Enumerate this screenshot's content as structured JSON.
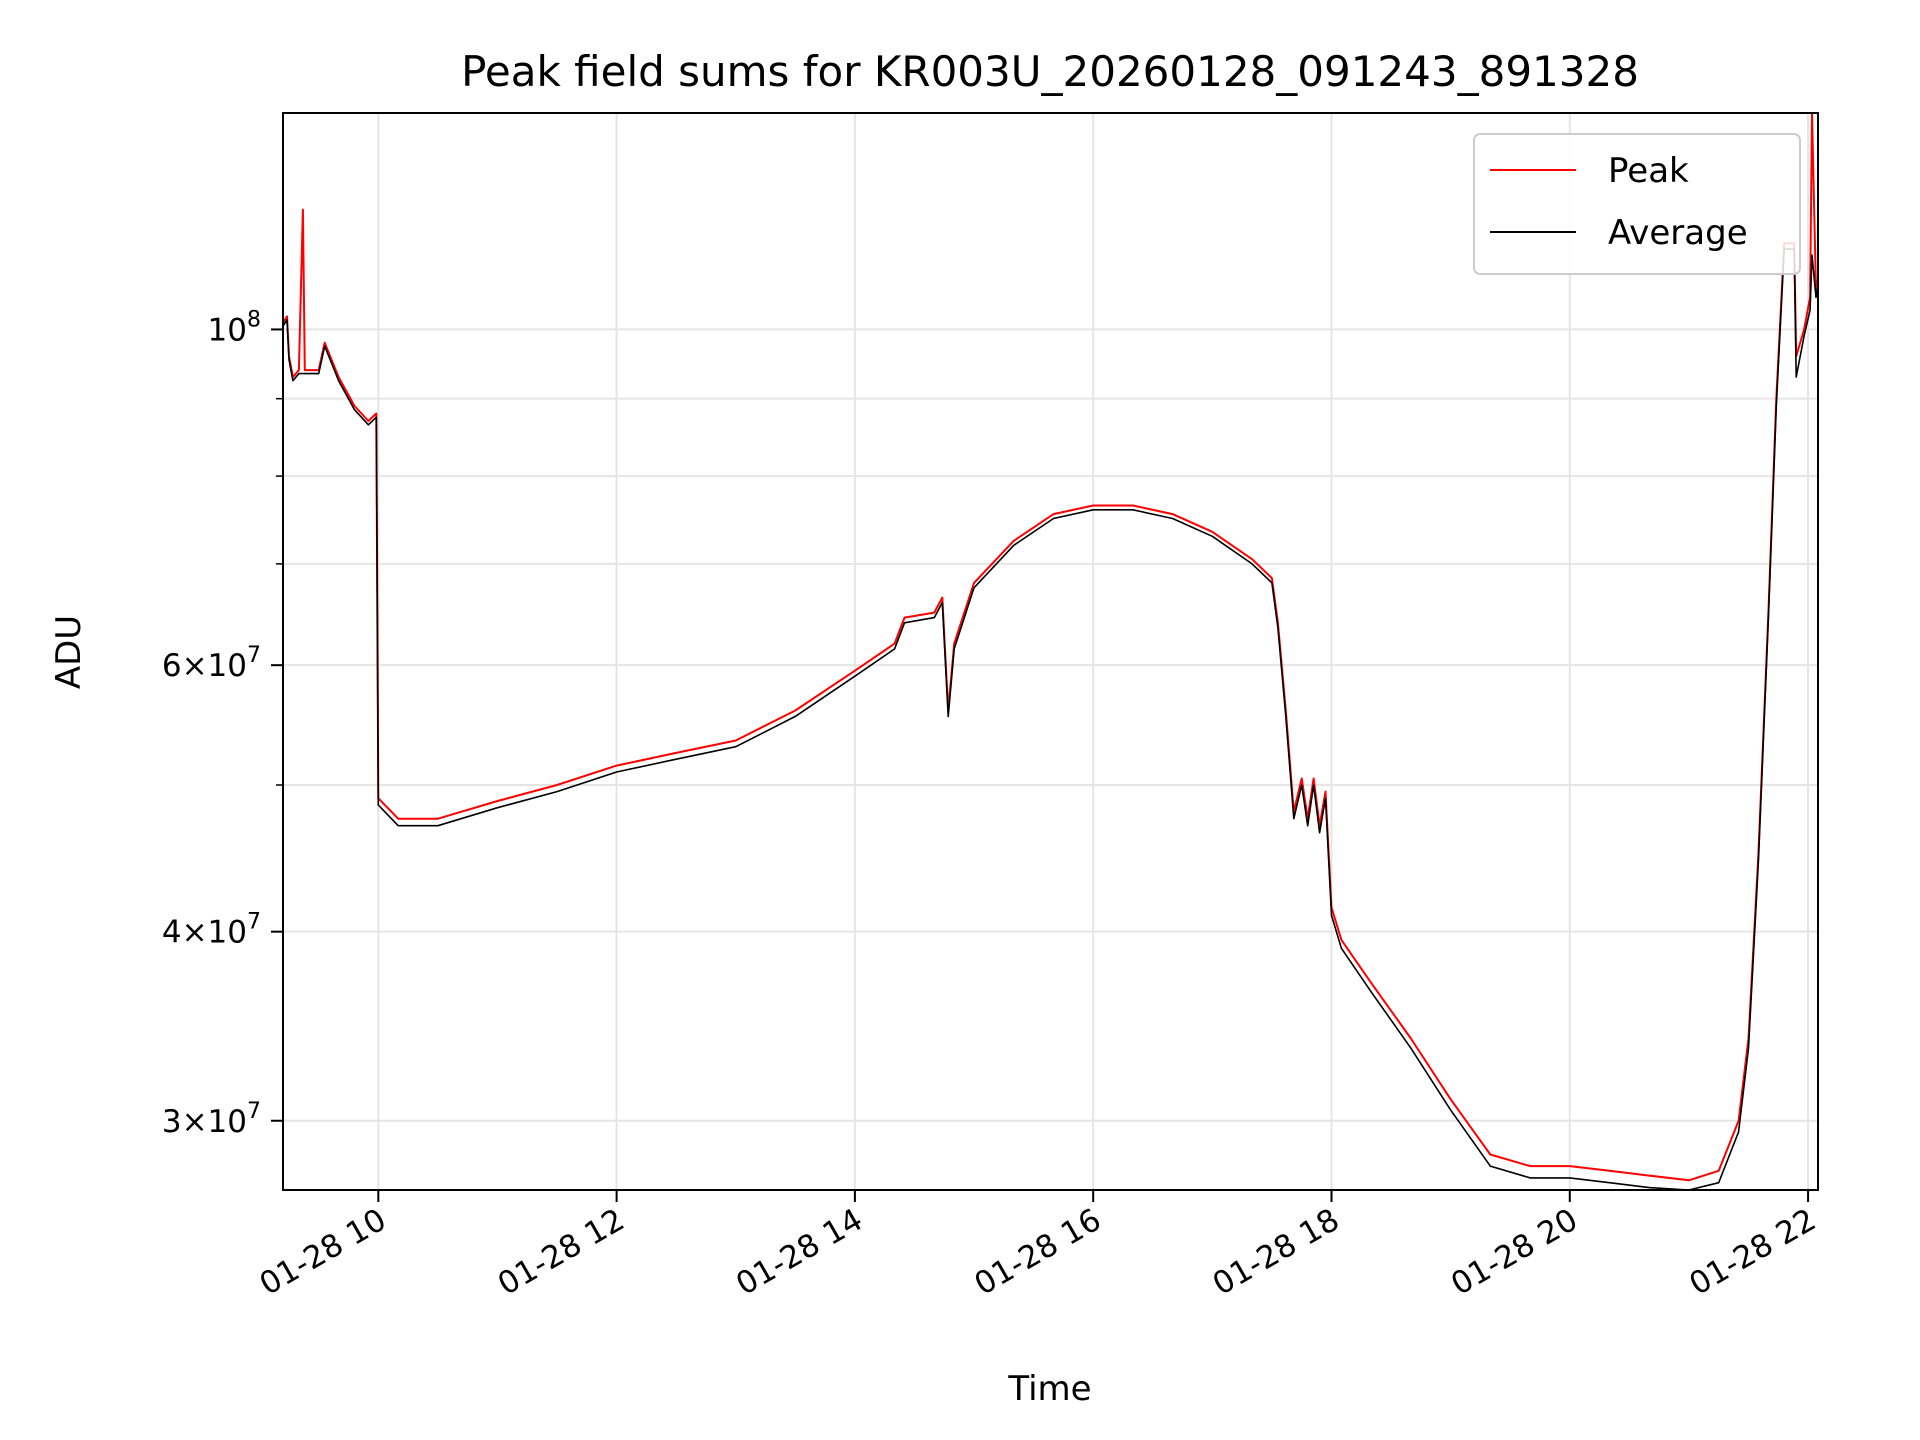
{
  "chart_data": {
    "type": "line",
    "title": "Peak field sums for KR003U_20260128_091243_891328",
    "xlabel": "Time",
    "ylabel": "ADU",
    "y_scale": "log",
    "xlim": [
      "2026-01-28 09:12",
      "2026-01-28 22:05"
    ],
    "ylim": [
      27000000,
      139000000
    ],
    "grid": true,
    "legend_position": "top-right",
    "x_ticks": [
      {
        "value": "2026-01-28 10:00",
        "label": "01-28 10"
      },
      {
        "value": "2026-01-28 12:00",
        "label": "01-28 12"
      },
      {
        "value": "2026-01-28 14:00",
        "label": "01-28 14"
      },
      {
        "value": "2026-01-28 16:00",
        "label": "01-28 16"
      },
      {
        "value": "2026-01-28 18:00",
        "label": "01-28 18"
      },
      {
        "value": "2026-01-28 20:00",
        "label": "01-28 20"
      },
      {
        "value": "2026-01-28 22:00",
        "label": "01-28 22"
      }
    ],
    "y_ticks": [
      {
        "value": 30000000,
        "mantissa": "3",
        "times": "×",
        "base": "10",
        "exp": "7"
      },
      {
        "value": 40000000,
        "mantissa": "4",
        "times": "×",
        "base": "10",
        "exp": "7"
      },
      {
        "value": 60000000,
        "mantissa": "6",
        "times": "×",
        "base": "10",
        "exp": "7"
      },
      {
        "value": 100000000,
        "mantissa": "",
        "times": "",
        "base": "10",
        "exp": "8"
      }
    ],
    "y_minor_ticks": [
      50000000,
      70000000,
      80000000,
      90000000
    ],
    "series": [
      {
        "name": "Peak",
        "color": "#ff0000",
        "points": [
          [
            "2026-01-28 09:12",
            101000000
          ],
          [
            "2026-01-28 09:14",
            102000000
          ],
          [
            "2026-01-28 09:15",
            96000000
          ],
          [
            "2026-01-28 09:17",
            93000000
          ],
          [
            "2026-01-28 09:20",
            94000000
          ],
          [
            "2026-01-28 09:22",
            120000000
          ],
          [
            "2026-01-28 09:23",
            94000000
          ],
          [
            "2026-01-28 09:30",
            94000000
          ],
          [
            "2026-01-28 09:33",
            98000000
          ],
          [
            "2026-01-28 09:40",
            93000000
          ],
          [
            "2026-01-28 09:48",
            89000000
          ],
          [
            "2026-01-28 09:55",
            87000000
          ],
          [
            "2026-01-28 09:59",
            88000000
          ],
          [
            "2026-01-28 10:00",
            49000000
          ],
          [
            "2026-01-28 10:10",
            47500000
          ],
          [
            "2026-01-28 10:30",
            47500000
          ],
          [
            "2026-01-28 11:00",
            48800000
          ],
          [
            "2026-01-28 11:30",
            50000000
          ],
          [
            "2026-01-28 12:00",
            51500000
          ],
          [
            "2026-01-28 12:30",
            52500000
          ],
          [
            "2026-01-28 13:00",
            53500000
          ],
          [
            "2026-01-28 13:30",
            56000000
          ],
          [
            "2026-01-28 14:00",
            59500000
          ],
          [
            "2026-01-28 14:20",
            62000000
          ],
          [
            "2026-01-28 14:25",
            64500000
          ],
          [
            "2026-01-28 14:40",
            65000000
          ],
          [
            "2026-01-28 14:44",
            66500000
          ],
          [
            "2026-01-28 14:47",
            56000000
          ],
          [
            "2026-01-28 14:50",
            62000000
          ],
          [
            "2026-01-28 15:00",
            68000000
          ],
          [
            "2026-01-28 15:20",
            72500000
          ],
          [
            "2026-01-28 15:40",
            75500000
          ],
          [
            "2026-01-28 16:00",
            76500000
          ],
          [
            "2026-01-28 16:20",
            76500000
          ],
          [
            "2026-01-28 16:40",
            75500000
          ],
          [
            "2026-01-28 17:00",
            73500000
          ],
          [
            "2026-01-28 17:20",
            70500000
          ],
          [
            "2026-01-28 17:30",
            68500000
          ],
          [
            "2026-01-28 17:33",
            64000000
          ],
          [
            "2026-01-28 17:37",
            56000000
          ],
          [
            "2026-01-28 17:41",
            48000000
          ],
          [
            "2026-01-28 17:45",
            50500000
          ],
          [
            "2026-01-28 17:48",
            47500000
          ],
          [
            "2026-01-28 17:51",
            50500000
          ],
          [
            "2026-01-28 17:54",
            47000000
          ],
          [
            "2026-01-28 17:57",
            49500000
          ],
          [
            "2026-01-28 18:00",
            41500000
          ],
          [
            "2026-01-28 18:05",
            39500000
          ],
          [
            "2026-01-28 18:20",
            37000000
          ],
          [
            "2026-01-28 18:40",
            34000000
          ],
          [
            "2026-01-28 19:00",
            31000000
          ],
          [
            "2026-01-28 19:20",
            28500000
          ],
          [
            "2026-01-28 19:40",
            28000000
          ],
          [
            "2026-01-28 20:00",
            28000000
          ],
          [
            "2026-01-28 20:20",
            27800000
          ],
          [
            "2026-01-28 20:40",
            27600000
          ],
          [
            "2026-01-28 21:00",
            27400000
          ],
          [
            "2026-01-28 21:15",
            27800000
          ],
          [
            "2026-01-28 21:25",
            30000000
          ],
          [
            "2026-01-28 21:30",
            34000000
          ],
          [
            "2026-01-28 21:35",
            45000000
          ],
          [
            "2026-01-28 21:40",
            65000000
          ],
          [
            "2026-01-28 21:44",
            90000000
          ],
          [
            "2026-01-28 21:48",
            114000000
          ],
          [
            "2026-01-28 21:53",
            114000000
          ],
          [
            "2026-01-28 21:54",
            96000000
          ],
          [
            "2026-01-28 21:58",
            100000000
          ],
          [
            "2026-01-28 22:01",
            105000000
          ],
          [
            "2026-01-28 22:02",
            139000000
          ],
          [
            "2026-01-28 22:04",
            106000000
          ],
          [
            "2026-01-28 22:05",
            108000000
          ]
        ]
      },
      {
        "name": "Average",
        "color": "#000000",
        "points": [
          [
            "2026-01-28 09:12",
            100500000
          ],
          [
            "2026-01-28 09:14",
            101500000
          ],
          [
            "2026-01-28 09:15",
            95500000
          ],
          [
            "2026-01-28 09:17",
            92500000
          ],
          [
            "2026-01-28 09:20",
            93500000
          ],
          [
            "2026-01-28 09:22",
            93500000
          ],
          [
            "2026-01-28 09:30",
            93500000
          ],
          [
            "2026-01-28 09:33",
            97500000
          ],
          [
            "2026-01-28 09:40",
            92500000
          ],
          [
            "2026-01-28 09:48",
            88500000
          ],
          [
            "2026-01-28 09:55",
            86500000
          ],
          [
            "2026-01-28 09:59",
            87500000
          ],
          [
            "2026-01-28 10:00",
            48500000
          ],
          [
            "2026-01-28 10:10",
            47000000
          ],
          [
            "2026-01-28 10:30",
            47000000
          ],
          [
            "2026-01-28 11:00",
            48300000
          ],
          [
            "2026-01-28 11:30",
            49500000
          ],
          [
            "2026-01-28 12:00",
            51000000
          ],
          [
            "2026-01-28 12:30",
            52000000
          ],
          [
            "2026-01-28 13:00",
            53000000
          ],
          [
            "2026-01-28 13:30",
            55500000
          ],
          [
            "2026-01-28 14:00",
            59000000
          ],
          [
            "2026-01-28 14:20",
            61500000
          ],
          [
            "2026-01-28 14:25",
            64000000
          ],
          [
            "2026-01-28 14:40",
            64500000
          ],
          [
            "2026-01-28 14:44",
            66000000
          ],
          [
            "2026-01-28 14:47",
            55500000
          ],
          [
            "2026-01-28 14:50",
            61500000
          ],
          [
            "2026-01-28 15:00",
            67500000
          ],
          [
            "2026-01-28 15:20",
            72000000
          ],
          [
            "2026-01-28 15:40",
            75000000
          ],
          [
            "2026-01-28 16:00",
            76000000
          ],
          [
            "2026-01-28 16:20",
            76000000
          ],
          [
            "2026-01-28 16:40",
            75000000
          ],
          [
            "2026-01-28 17:00",
            73000000
          ],
          [
            "2026-01-28 17:20",
            70000000
          ],
          [
            "2026-01-28 17:30",
            68000000
          ],
          [
            "2026-01-28 17:33",
            63500000
          ],
          [
            "2026-01-28 17:37",
            55500000
          ],
          [
            "2026-01-28 17:41",
            47500000
          ],
          [
            "2026-01-28 17:45",
            50000000
          ],
          [
            "2026-01-28 17:48",
            47000000
          ],
          [
            "2026-01-28 17:51",
            50000000
          ],
          [
            "2026-01-28 17:54",
            46500000
          ],
          [
            "2026-01-28 17:57",
            49000000
          ],
          [
            "2026-01-28 18:00",
            41000000
          ],
          [
            "2026-01-28 18:05",
            39000000
          ],
          [
            "2026-01-28 18:20",
            36500000
          ],
          [
            "2026-01-28 18:40",
            33500000
          ],
          [
            "2026-01-28 19:00",
            30500000
          ],
          [
            "2026-01-28 19:20",
            28000000
          ],
          [
            "2026-01-28 19:40",
            27500000
          ],
          [
            "2026-01-28 20:00",
            27500000
          ],
          [
            "2026-01-28 20:20",
            27300000
          ],
          [
            "2026-01-28 20:40",
            27100000
          ],
          [
            "2026-01-28 21:00",
            27000000
          ],
          [
            "2026-01-28 21:15",
            27300000
          ],
          [
            "2026-01-28 21:25",
            29500000
          ],
          [
            "2026-01-28 21:30",
            33500000
          ],
          [
            "2026-01-28 21:35",
            44500000
          ],
          [
            "2026-01-28 21:40",
            64500000
          ],
          [
            "2026-01-28 21:44",
            89000000
          ],
          [
            "2026-01-28 21:48",
            113000000
          ],
          [
            "2026-01-28 21:53",
            113000000
          ],
          [
            "2026-01-28 21:54",
            93000000
          ],
          [
            "2026-01-28 21:58",
            99000000
          ],
          [
            "2026-01-28 22:01",
            103000000
          ],
          [
            "2026-01-28 22:02",
            112000000
          ],
          [
            "2026-01-28 22:04",
            105000000
          ],
          [
            "2026-01-28 22:05",
            107000000
          ]
        ]
      }
    ]
  }
}
